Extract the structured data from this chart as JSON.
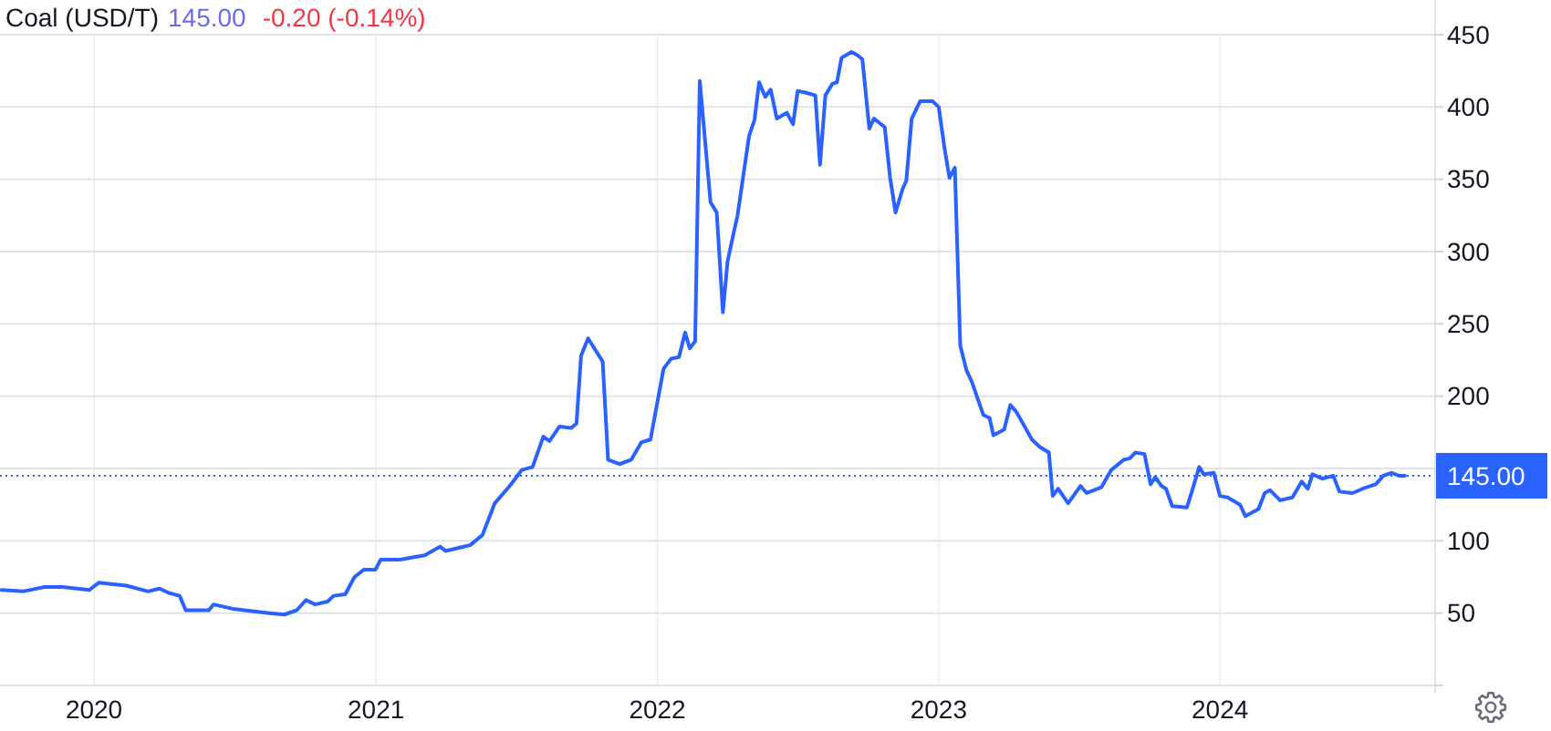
{
  "chart_data": {
    "type": "line",
    "title": "Coal (USD/T)",
    "annotations": [
      "145.00",
      "-0.20 (-0.14%)"
    ],
    "x": [
      "2019-09-03",
      "2019-10-01",
      "2019-10-28",
      "2019-11-21",
      "2019-12-26",
      "2020-01-07",
      "2020-02-12",
      "2020-03-11",
      "2020-03-26",
      "2020-04-07",
      "2020-04-21",
      "2020-04-29",
      "2020-05-29",
      "2020-06-04",
      "2020-06-29",
      "2020-08-16",
      "2020-09-04",
      "2020-09-20",
      "2020-10-02",
      "2020-10-14",
      "2020-10-30",
      "2020-11-07",
      "2020-11-22",
      "2020-12-04",
      "2020-12-16",
      "2020-12-31",
      "2021-01-07",
      "2021-02-01",
      "2021-03-05",
      "2021-03-25",
      "2021-04-01",
      "2021-05-03",
      "2021-05-19",
      "2021-06-04",
      "2021-06-25",
      "2021-07-09",
      "2021-07-23",
      "2021-08-06",
      "2021-08-14",
      "2021-08-27",
      "2021-09-11",
      "2021-09-18",
      "2021-09-24",
      "2021-10-03",
      "2021-10-22",
      "2021-10-29",
      "2021-11-13",
      "2021-11-28",
      "2021-12-11",
      "2021-12-23",
      "2022-01-09",
      "2022-01-19",
      "2022-01-29",
      "2022-02-06",
      "2022-02-12",
      "2022-02-19",
      "2022-02-25",
      "2022-03-11",
      "2022-03-19",
      "2022-03-27",
      "2022-04-02",
      "2022-04-10",
      "2022-04-15",
      "2022-04-30",
      "2022-05-07",
      "2022-05-13",
      "2022-05-21",
      "2022-05-28",
      "2022-06-05",
      "2022-06-18",
      "2022-06-26",
      "2022-07-02",
      "2022-07-12",
      "2022-07-25",
      "2022-07-31",
      "2022-08-07",
      "2022-08-16",
      "2022-08-22",
      "2022-08-28",
      "2022-09-10",
      "2022-09-17",
      "2022-09-24",
      "2022-10-03",
      "2022-10-09",
      "2022-10-23",
      "2022-10-30",
      "2022-11-06",
      "2022-11-15",
      "2022-11-20",
      "2022-11-27",
      "2022-12-08",
      "2022-12-24",
      "2023-01-01",
      "2023-01-09",
      "2023-01-15",
      "2023-01-22",
      "2023-01-29",
      "2023-02-06",
      "2023-02-13",
      "2023-02-28",
      "2023-03-08",
      "2023-03-13",
      "2023-03-27",
      "2023-04-04",
      "2023-04-12",
      "2023-05-02",
      "2023-05-12",
      "2023-05-24",
      "2023-05-29",
      "2023-06-05",
      "2023-06-18",
      "2023-07-04",
      "2023-07-12",
      "2023-07-31",
      "2023-08-13",
      "2023-08-29",
      "2023-09-06",
      "2023-09-13",
      "2023-09-25",
      "2023-10-03",
      "2023-10-09",
      "2023-10-17",
      "2023-10-23",
      "2023-10-31",
      "2023-11-19",
      "2023-11-25",
      "2023-12-05",
      "2023-12-11",
      "2023-12-24",
      "2024-01-01",
      "2024-01-11",
      "2024-01-27",
      "2024-02-03",
      "2024-02-20",
      "2024-02-28",
      "2024-03-06",
      "2024-03-19",
      "2024-04-04",
      "2024-04-16",
      "2024-04-24",
      "2024-04-30",
      "2024-05-13",
      "2024-05-27",
      "2024-06-04",
      "2024-06-21",
      "2024-07-04",
      "2024-07-21",
      "2024-07-31",
      "2024-08-11",
      "2024-08-20",
      "2024-08-28"
    ],
    "series": [
      {
        "color": "#2962ff",
        "values": [
          66,
          65,
          68,
          68,
          66,
          71,
          69,
          65,
          67,
          64,
          62,
          52,
          52,
          56,
          53,
          50,
          49,
          52,
          59,
          56,
          58,
          62,
          63,
          75,
          80,
          80,
          87,
          87,
          90,
          96,
          93,
          97,
          104,
          126,
          139,
          149,
          151,
          172,
          169,
          179,
          178,
          181,
          228,
          240,
          224,
          156,
          153,
          156,
          168,
          170,
          219,
          226,
          227,
          244,
          233,
          238,
          418,
          334,
          327,
          258,
          293,
          313,
          325,
          380,
          391,
          417,
          407,
          412,
          392,
          396,
          388,
          411,
          410,
          408,
          360,
          408,
          416,
          417,
          434,
          438,
          436,
          433,
          385,
          392,
          386,
          351,
          327,
          343,
          349,
          392,
          404,
          404,
          400,
          370,
          351,
          358,
          235,
          218,
          210,
          187,
          185,
          173,
          177,
          194,
          189,
          170,
          165,
          161,
          131,
          136,
          126,
          138,
          133,
          137,
          149,
          156,
          157,
          161,
          160,
          139,
          144,
          138,
          136,
          124,
          123,
          133,
          151,
          146,
          147,
          131,
          130,
          125,
          117,
          122,
          133,
          135,
          128,
          130,
          141,
          136,
          146,
          143,
          145,
          134,
          133,
          136,
          139,
          145,
          147,
          145,
          145
        ]
      }
    ],
    "xlim": [
      "2019-09-01",
      "2024-10-05"
    ],
    "xticks": [
      "2020",
      "2021",
      "2022",
      "2023",
      "2024"
    ],
    "ylim": [
      0,
      450
    ],
    "yticks": [
      {
        "value": 0,
        "label": null
      },
      50,
      100,
      {
        "value": 150,
        "label": null
      },
      200,
      250,
      300,
      350,
      400,
      450
    ],
    "ref_lines": [
      {
        "axis": "y",
        "value": 145,
        "label": "145.00",
        "color": "#2962ff",
        "line_style": "dotted"
      }
    ],
    "grid": true
  }
}
